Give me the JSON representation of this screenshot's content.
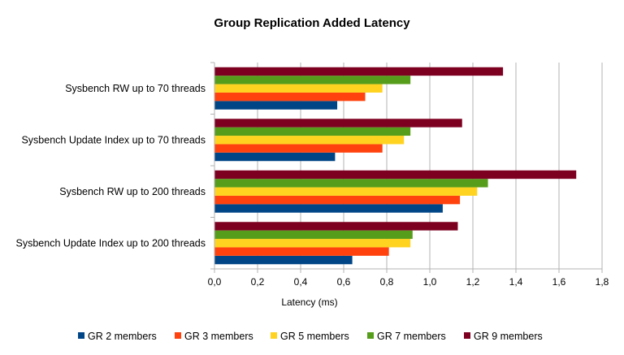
{
  "chart_data": {
    "type": "bar",
    "orientation": "horizontal",
    "title": "Group Replication Added Latency",
    "xlabel": "Latency (ms)",
    "ylabel": "",
    "xlim": [
      0,
      1.8
    ],
    "xticks": [
      "0,0",
      "0,2",
      "0,4",
      "0,6",
      "0,8",
      "1,0",
      "1,2",
      "1,4",
      "1,6",
      "1,8"
    ],
    "grid": "vertical major gridlines",
    "legend_position": "bottom",
    "categories": [
      "Sysbench RW up to 70 threads",
      "Sysbench Update Index up to 70 threads",
      "Sysbench RW up to 200 threads",
      "Sysbench Update Index up to 200 threads"
    ],
    "series": [
      {
        "name": "GR 2 members",
        "color": "#004586",
        "values": [
          0.57,
          0.56,
          1.06,
          0.64
        ]
      },
      {
        "name": "GR 3 members",
        "color": "#ff420e",
        "values": [
          0.7,
          0.78,
          1.14,
          0.81
        ]
      },
      {
        "name": "GR 5 members",
        "color": "#ffd320",
        "values": [
          0.78,
          0.88,
          1.22,
          0.91
        ]
      },
      {
        "name": "GR 7 members",
        "color": "#579d1c",
        "values": [
          0.91,
          0.91,
          1.27,
          0.92
        ]
      },
      {
        "name": "GR 9 members",
        "color": "#7e0021",
        "values": [
          1.34,
          1.15,
          1.68,
          1.13
        ]
      }
    ]
  }
}
